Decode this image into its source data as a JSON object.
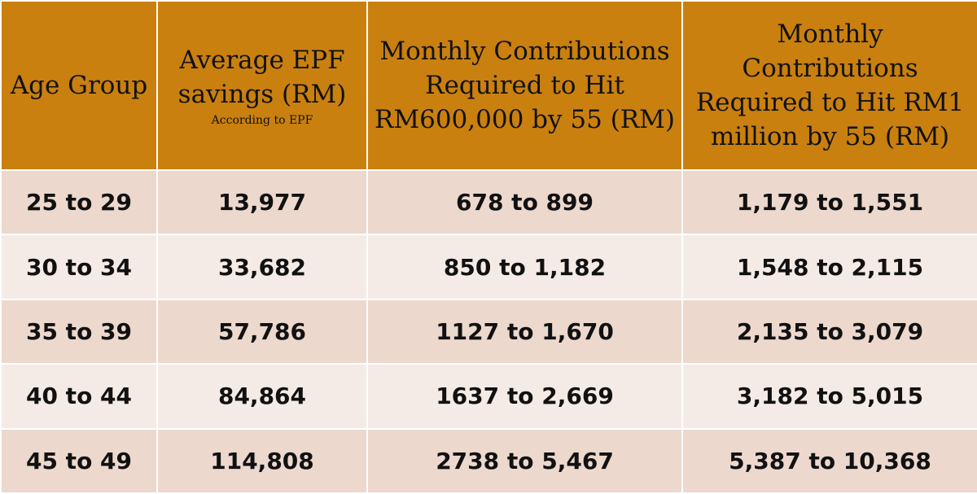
{
  "colors": {
    "header_bg": "#c9800f",
    "row_dark": "#ecd8cd",
    "row_light": "#f5ebe6",
    "text": "#111111",
    "border": "#ffffff"
  },
  "table": {
    "headers": [
      {
        "label": "Age Group",
        "sub": ""
      },
      {
        "label": "Average EPF savings (RM)",
        "sub": "According to EPF"
      },
      {
        "label": "Monthly Contributions Required to Hit RM600,000 by 55 (RM)",
        "sub": ""
      },
      {
        "label": "Monthly Contributions Required to Hit RM1 million by 55 (RM)",
        "sub": ""
      }
    ],
    "rows": [
      [
        "25 to 29",
        "13,977",
        "678 to 899",
        "1,179 to 1,551"
      ],
      [
        "30 to 34",
        "33,682",
        "850 to 1,182",
        "1,548 to 2,115"
      ],
      [
        "35 to 39",
        "57,786",
        "1127 to 1,670",
        "2,135 to 3,079"
      ],
      [
        "40 to 44",
        "84,864",
        "1637 to 2,669",
        "3,182 to 5,015"
      ],
      [
        "45 to 49",
        "114,808",
        "2738 to 5,467",
        "5,387 to 10,368"
      ]
    ]
  }
}
